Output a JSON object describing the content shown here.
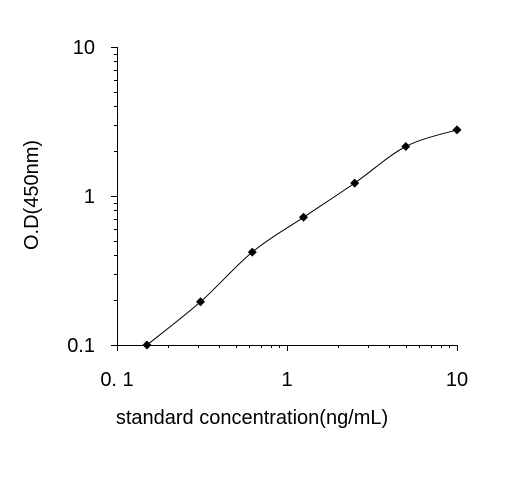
{
  "chart_data": {
    "type": "line",
    "xlabel": "standard concentration(ng/mL)",
    "ylabel": "O.D(450nm)",
    "xscale": "log",
    "yscale": "log",
    "xlim": [
      0.1,
      10
    ],
    "ylim": [
      0.1,
      10
    ],
    "x_tick_labels": [
      "0. 1",
      "1",
      "10"
    ],
    "y_tick_labels": [
      "0.1",
      "1",
      "10"
    ],
    "grid": false,
    "legend": "none",
    "line_color": "#000000",
    "marker": "diamond",
    "series": [
      {
        "x": [
          0.15,
          0.31,
          0.625,
          1.25,
          2.5,
          5,
          10
        ],
        "y": [
          0.1,
          0.195,
          0.42,
          0.72,
          1.22,
          2.15,
          2.78
        ]
      }
    ]
  }
}
